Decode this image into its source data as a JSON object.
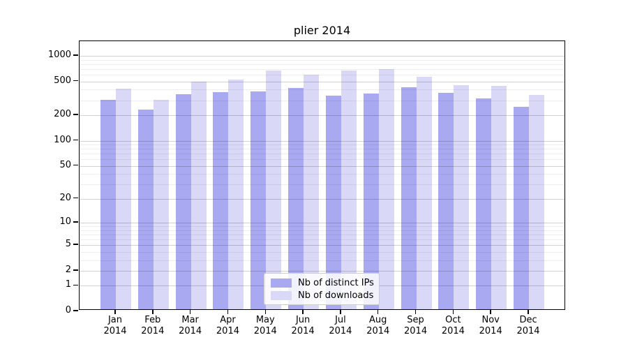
{
  "title": "plier 2014",
  "chart_data": {
    "type": "bar",
    "title": "plier 2014",
    "categories": [
      "Jan",
      "Feb",
      "Mar",
      "Apr",
      "May",
      "Jun",
      "Jul",
      "Aug",
      "Sep",
      "Oct",
      "Nov",
      "Dec"
    ],
    "year_label": "2014",
    "series": [
      {
        "name": "Nb of distinct IPs",
        "color": "#a9a9f2",
        "values": [
          290,
          225,
          340,
          360,
          365,
          405,
          330,
          345,
          410,
          355,
          305,
          240
        ]
      },
      {
        "name": "Nb of downloads",
        "color": "#d9d9f7",
        "values": [
          395,
          290,
          480,
          510,
          650,
          580,
          645,
          675,
          545,
          435,
          425,
          335
        ]
      }
    ],
    "xlabel": "",
    "ylabel": "",
    "yscale": "log1p",
    "ylim": [
      0,
      1485
    ],
    "yticks": [
      0,
      1,
      2,
      5,
      10,
      20,
      50,
      100,
      200,
      500,
      1000
    ],
    "minor_yticks": [
      3,
      4,
      6,
      7,
      8,
      9,
      30,
      40,
      60,
      70,
      80,
      90,
      300,
      400,
      600,
      700,
      800,
      900
    ],
    "grid": true,
    "legend_position": "lower center",
    "axis_color": "#000000",
    "background_color": "#ffffff"
  }
}
